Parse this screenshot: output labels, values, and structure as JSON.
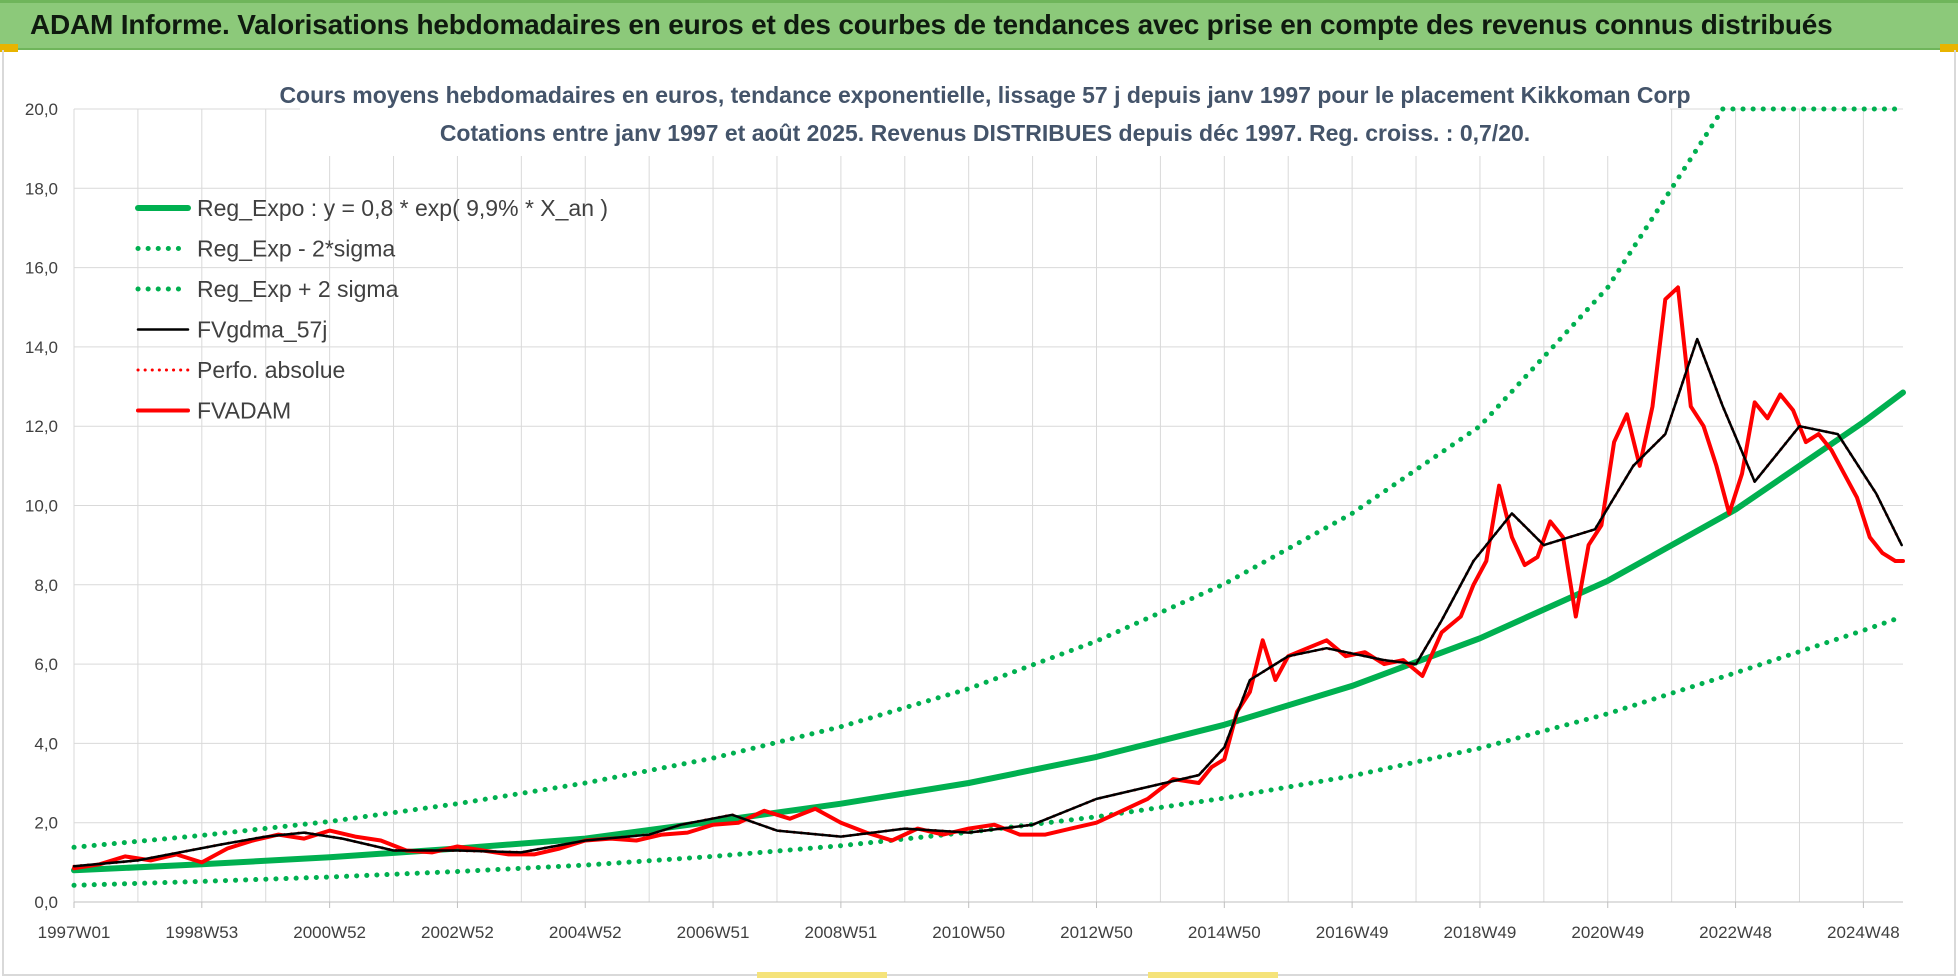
{
  "banner": {
    "title": "ADAM Informe. Valorisations hebdomadaires en euros et des courbes de tendances avec prise en compte des revenus connus distribués"
  },
  "colors": {
    "banner_bg": "#8cc97a",
    "trend": "#00b050",
    "price": "#ff0000",
    "smooth": "#000000",
    "title": "#44546a",
    "grid": "#d9d9d9"
  },
  "chart_data": {
    "type": "line",
    "title": "Cours moyens hebdomadaires en euros, tendance exponentielle, lissage 57 j depuis janv 1997  pour le placement Kikkoman Corp",
    "subtitle": "Cotations entre janv 1997 et août 2025.  Revenus DISTRIBUES depuis déc 1997. Reg. croiss. : 0,7/20.",
    "xlabel": "",
    "ylabel": "",
    "ylim": [
      0,
      20
    ],
    "yticks": [
      "0,0",
      "2,0",
      "4,0",
      "6,0",
      "8,0",
      "10,0",
      "12,0",
      "14,0",
      "16,0",
      "18,0",
      "20,0"
    ],
    "xlim": [
      1997.0,
      2025.62
    ],
    "xticks": [
      {
        "label": "1997W01",
        "x": 1997.0
      },
      {
        "label": "1998W53",
        "x": 1999.0
      },
      {
        "label": "2000W52",
        "x": 2001.0
      },
      {
        "label": "2002W52",
        "x": 2003.0
      },
      {
        "label": "2004W52",
        "x": 2005.0
      },
      {
        "label": "2006W51",
        "x": 2007.0
      },
      {
        "label": "2008W51",
        "x": 2009.0
      },
      {
        "label": "2010W50",
        "x": 2011.0
      },
      {
        "label": "2012W50",
        "x": 2013.0
      },
      {
        "label": "2014W50",
        "x": 2015.0
      },
      {
        "label": "2016W49",
        "x": 2017.0
      },
      {
        "label": "2018W49",
        "x": 2019.0
      },
      {
        "label": "2020W49",
        "x": 2021.0
      },
      {
        "label": "2022W48",
        "x": 2023.0
      },
      {
        "label": "2024W48",
        "x": 2025.0
      }
    ],
    "grid": true,
    "legend_position": "top-left",
    "series": [
      {
        "name": "Reg_Expo : y = 0,8 * exp( 9,9% *  X_an )",
        "style": "solid",
        "color": "#00b050",
        "x": [
          1997,
          1999,
          2001,
          2003,
          2005,
          2007,
          2009,
          2011,
          2013,
          2015,
          2017,
          2019,
          2021,
          2023,
          2025,
          2025.62
        ],
        "y": [
          0.8,
          0.95,
          1.13,
          1.35,
          1.6,
          2.03,
          2.48,
          3.0,
          3.66,
          4.47,
          5.45,
          6.65,
          8.1,
          9.9,
          12.1,
          12.85
        ]
      },
      {
        "name": "Reg_Exp - 2*sigma",
        "style": "dotted",
        "color": "#00b050",
        "x": [
          1997,
          1999,
          2001,
          2003,
          2005,
          2007,
          2009,
          2011,
          2013,
          2015,
          2017,
          2019,
          2021,
          2023,
          2025,
          2025.62
        ],
        "y": [
          0.42,
          0.52,
          0.63,
          0.77,
          0.93,
          1.15,
          1.42,
          1.76,
          2.15,
          2.62,
          3.18,
          3.88,
          4.75,
          5.78,
          6.85,
          7.2
        ]
      },
      {
        "name": "Reg_Exp + 2 sigma",
        "style": "dotted",
        "color": "#00b050",
        "x": [
          1997,
          1999,
          2001,
          2003,
          2005,
          2007,
          2009,
          2011,
          2013,
          2015,
          2017,
          2019,
          2021,
          2022.8,
          2025.62
        ],
        "y": [
          1.38,
          1.68,
          2.03,
          2.48,
          3.0,
          3.63,
          4.42,
          5.38,
          6.58,
          8.02,
          9.8,
          12.0,
          15.5,
          20.0,
          20.0
        ]
      },
      {
        "name": "FVgdma_57j",
        "style": "solid",
        "color": "#000000",
        "x": [
          1997.0,
          1998.0,
          1999.3,
          2000.0,
          2000.6,
          2001.2,
          2002.0,
          2003.0,
          2004.0,
          2005.0,
          2006.0,
          2006.5,
          2007.3,
          2008.0,
          2009.0,
          2010.0,
          2011.0,
          2012.0,
          2013.0,
          2013.8,
          2014.6,
          2015.0,
          2015.4,
          2016.0,
          2016.6,
          2017.5,
          2018.0,
          2018.4,
          2018.9,
          2019.5,
          2020.0,
          2020.8,
          2021.4,
          2021.9,
          2022.4,
          2022.8,
          2023.3,
          2024.0,
          2024.6,
          2025.2,
          2025.6
        ],
        "y": [
          0.9,
          1.05,
          1.45,
          1.65,
          1.75,
          1.6,
          1.3,
          1.3,
          1.25,
          1.55,
          1.7,
          1.95,
          2.2,
          1.8,
          1.65,
          1.85,
          1.75,
          1.95,
          2.6,
          2.9,
          3.2,
          3.9,
          5.6,
          6.2,
          6.4,
          6.1,
          6.0,
          7.1,
          8.6,
          9.8,
          9.0,
          9.4,
          11.0,
          11.8,
          14.2,
          12.5,
          10.6,
          12.0,
          11.8,
          10.3,
          9.0
        ]
      },
      {
        "name": "Perfo. absolue",
        "style": "dotted",
        "color": "#ff0000",
        "x": [
          1997.0,
          1998.0,
          1999.3,
          2000.0,
          2000.6,
          2001.2,
          2002.0,
          2003.0,
          2004.0,
          2005.0,
          2006.0,
          2006.5,
          2007.3,
          2008.0,
          2009.0,
          2010.0,
          2011.0,
          2012.0,
          2013.0,
          2013.8,
          2014.6,
          2015.0,
          2015.4,
          2016.0,
          2016.6,
          2017.5,
          2018.0,
          2018.4,
          2018.9,
          2019.5,
          2020.0,
          2020.8,
          2021.4,
          2021.9,
          2022.4,
          2022.8,
          2023.3,
          2024.0,
          2024.6,
          2025.2,
          2025.6
        ],
        "y": [
          0.9,
          1.05,
          1.45,
          1.65,
          1.75,
          1.6,
          1.3,
          1.3,
          1.25,
          1.55,
          1.7,
          1.95,
          2.2,
          1.8,
          1.65,
          1.85,
          1.75,
          1.95,
          2.6,
          2.9,
          3.2,
          3.9,
          5.6,
          6.2,
          6.4,
          6.1,
          6.0,
          7.1,
          8.6,
          9.8,
          9.0,
          9.4,
          11.0,
          11.8,
          14.2,
          12.5,
          10.6,
          12.0,
          11.8,
          10.3,
          9.0
        ]
      },
      {
        "name": "FVADAM",
        "style": "solid",
        "color": "#ff0000",
        "x": [
          1997.0,
          1997.4,
          1997.8,
          1998.2,
          1998.6,
          1999.0,
          1999.4,
          1999.8,
          2000.2,
          2000.6,
          2001.0,
          2001.4,
          2001.8,
          2002.2,
          2002.6,
          2003.0,
          2003.4,
          2003.8,
          2004.2,
          2004.6,
          2005.0,
          2005.4,
          2005.8,
          2006.2,
          2006.6,
          2007.0,
          2007.4,
          2007.8,
          2008.2,
          2008.6,
          2009.0,
          2009.4,
          2009.8,
          2010.2,
          2010.6,
          2011.0,
          2011.4,
          2011.8,
          2012.2,
          2012.6,
          2013.0,
          2013.4,
          2013.8,
          2014.2,
          2014.6,
          2014.8,
          2015.0,
          2015.2,
          2015.4,
          2015.6,
          2015.8,
          2016.0,
          2016.3,
          2016.6,
          2016.9,
          2017.2,
          2017.5,
          2017.8,
          2018.1,
          2018.4,
          2018.7,
          2018.9,
          2019.1,
          2019.3,
          2019.5,
          2019.7,
          2019.9,
          2020.1,
          2020.3,
          2020.5,
          2020.7,
          2020.9,
          2021.1,
          2021.3,
          2021.5,
          2021.7,
          2021.9,
          2022.1,
          2022.3,
          2022.5,
          2022.7,
          2022.9,
          2023.1,
          2023.3,
          2023.5,
          2023.7,
          2023.9,
          2024.1,
          2024.3,
          2024.5,
          2024.7,
          2024.9,
          2025.1,
          2025.3,
          2025.5,
          2025.62
        ],
        "y": [
          0.85,
          0.95,
          1.15,
          1.05,
          1.2,
          1.0,
          1.35,
          1.55,
          1.7,
          1.6,
          1.8,
          1.65,
          1.55,
          1.3,
          1.25,
          1.4,
          1.3,
          1.2,
          1.2,
          1.35,
          1.55,
          1.6,
          1.55,
          1.7,
          1.75,
          1.95,
          2.0,
          2.3,
          2.1,
          2.35,
          2.0,
          1.75,
          1.55,
          1.85,
          1.7,
          1.85,
          1.95,
          1.7,
          1.7,
          1.85,
          2.0,
          2.3,
          2.6,
          3.1,
          3.0,
          3.4,
          3.6,
          4.8,
          5.3,
          6.6,
          5.6,
          6.2,
          6.4,
          6.6,
          6.2,
          6.3,
          6.0,
          6.1,
          5.7,
          6.8,
          7.2,
          8.0,
          8.6,
          10.5,
          9.2,
          8.5,
          8.7,
          9.6,
          9.2,
          7.2,
          9.0,
          9.5,
          11.6,
          12.3,
          11.0,
          12.5,
          15.2,
          15.5,
          12.5,
          12.0,
          11.0,
          9.8,
          10.8,
          12.6,
          12.2,
          12.8,
          12.4,
          11.6,
          11.8,
          11.4,
          10.8,
          10.2,
          9.2,
          8.8,
          8.6,
          8.6
        ]
      }
    ]
  }
}
